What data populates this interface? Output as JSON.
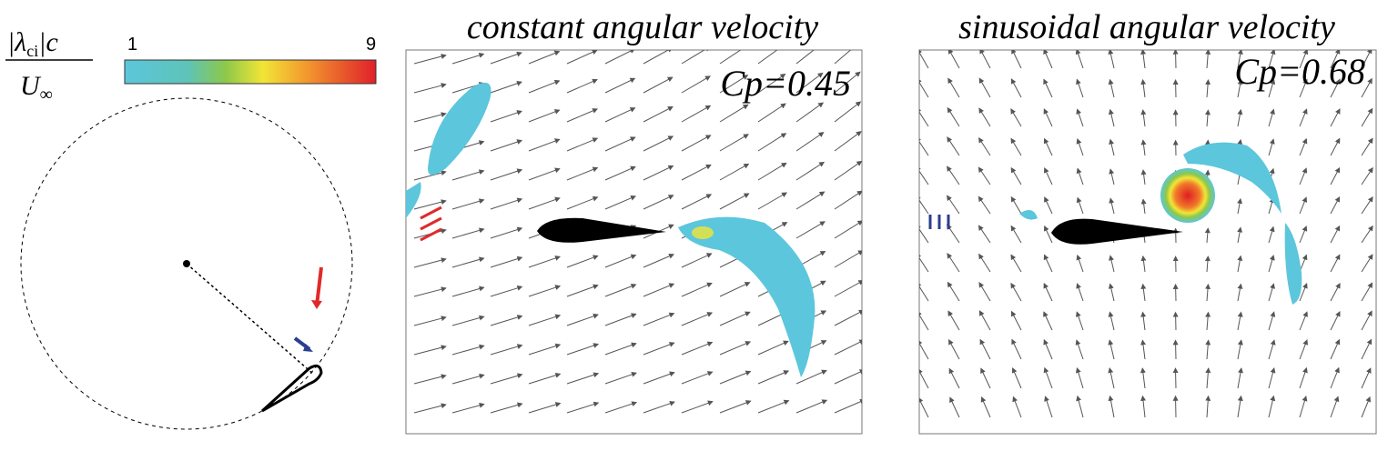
{
  "colorbar": {
    "label": {
      "numerator_start": "|λ",
      "numerator_subscript": "ci",
      "numerator_end": "|c",
      "denominator": "U",
      "denominator_subscript": "∞"
    },
    "ticks": [
      "1",
      "9"
    ]
  },
  "panels": [
    {
      "title": "constant angular velocity",
      "annotation": "Cp=0.45"
    },
    {
      "title": "sinusoidal angular velocity",
      "annotation": "Cp=0.68"
    }
  ]
}
